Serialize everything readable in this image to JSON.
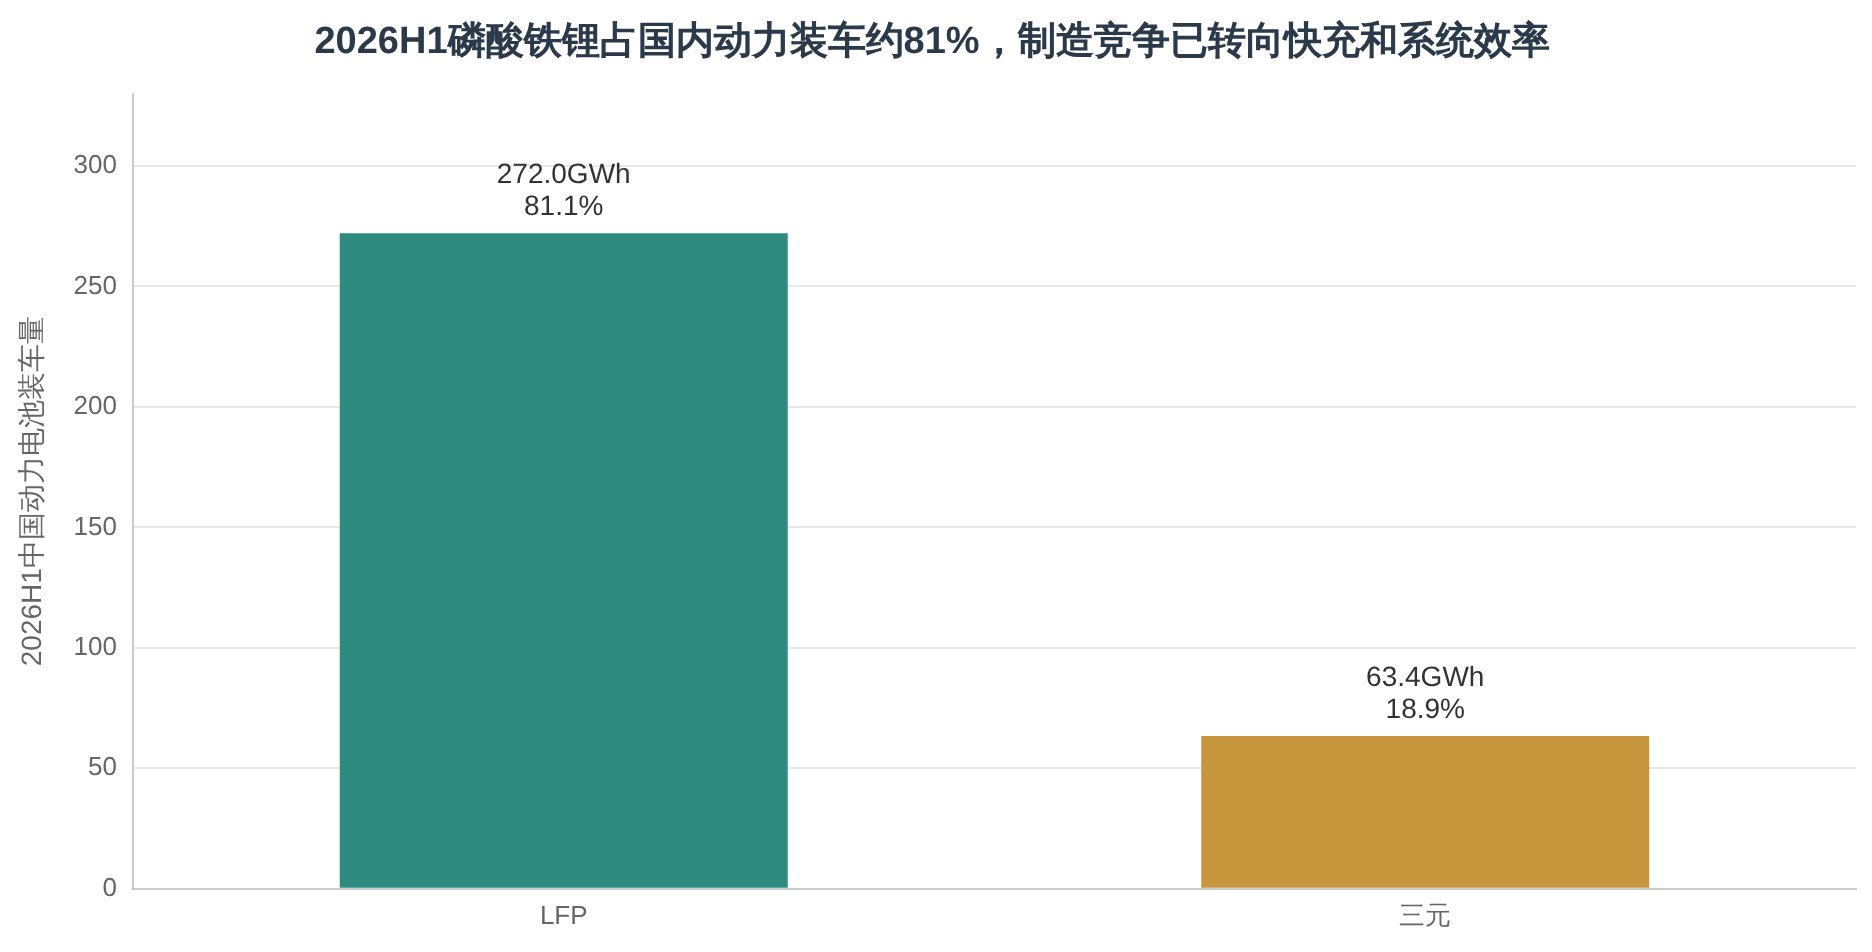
{
  "chart_data": {
    "type": "bar",
    "title": "2026H1磷酸铁锂占国内动力装车约81%，制造竞争已转向快充和系统效率",
    "ylabel": "2026H1中国动力电池装车量",
    "categories": [
      "LFP",
      "三元"
    ],
    "values": [
      272.0,
      63.4
    ],
    "colors": [
      "#2e8b80",
      "#c8963c"
    ],
    "value_labels": [
      "272.0GWh\n81.1%",
      "63.4GWh\n18.9%"
    ],
    "ylim": [
      0,
      330
    ],
    "yticks": [
      0,
      50,
      100,
      150,
      200,
      250,
      300
    ],
    "grid": "y",
    "legend": false
  }
}
